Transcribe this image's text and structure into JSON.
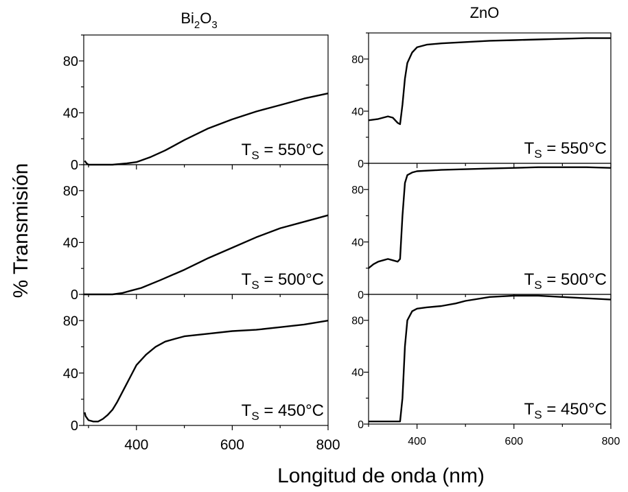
{
  "figure": {
    "ylabel": "% Transmisión",
    "xlabel": "Longitud de onda (nm)"
  },
  "chart_data": [
    {
      "type": "line",
      "column": "Bi₂O₃",
      "title_base": "Bi",
      "title_sub1": "2",
      "title_mid": "O",
      "title_sub2": "3",
      "label_main": "T",
      "label_sub": "S",
      "label_rest": " = 550°C",
      "xlim": [
        290,
        800
      ],
      "ylim": [
        0,
        100
      ],
      "yticks": [
        0,
        40,
        80
      ],
      "xticks": [
        400,
        600,
        800
      ],
      "series": [
        {
          "x": [
            292,
            294,
            296,
            300,
            320,
            350,
            380,
            400,
            430,
            460,
            500,
            550,
            600,
            650,
            700,
            750,
            800
          ],
          "y": [
            3,
            2,
            1,
            0,
            0,
            0,
            1,
            2,
            6,
            11,
            19,
            28,
            35,
            41,
            46,
            51,
            55
          ]
        }
      ]
    },
    {
      "type": "line",
      "column": "Bi₂O₃",
      "label_main": "T",
      "label_sub": "S",
      "label_rest": " = 500°C",
      "xlim": [
        290,
        800
      ],
      "ylim": [
        0,
        100
      ],
      "yticks": [
        0,
        40,
        80
      ],
      "xticks": [
        400,
        600,
        800
      ],
      "series": [
        {
          "x": [
            290,
            320,
            350,
            370,
            390,
            410,
            450,
            500,
            550,
            600,
            650,
            700,
            750,
            800
          ],
          "y": [
            0,
            0,
            0,
            1,
            3,
            5,
            11,
            19,
            28,
            36,
            44,
            51,
            56,
            61
          ]
        }
      ]
    },
    {
      "type": "line",
      "column": "Bi₂O₃",
      "label_main": "T",
      "label_sub": "S",
      "label_rest": " = 450°C",
      "xlim": [
        290,
        800
      ],
      "ylim": [
        0,
        100
      ],
      "yticks": [
        0,
        40,
        80
      ],
      "xticks": [
        400,
        600,
        800
      ],
      "series": [
        {
          "x": [
            292,
            294,
            296,
            300,
            310,
            320,
            330,
            340,
            350,
            360,
            370,
            380,
            390,
            400,
            420,
            440,
            460,
            480,
            500,
            550,
            600,
            650,
            700,
            750,
            800
          ],
          "y": [
            10,
            7,
            6,
            4,
            3,
            3,
            5,
            8,
            12,
            18,
            25,
            32,
            39,
            46,
            54,
            60,
            64,
            66,
            68,
            70,
            72,
            73,
            75,
            77,
            80
          ]
        }
      ]
    },
    {
      "type": "line",
      "column": "ZnO",
      "title": "ZnO",
      "label_main": "T",
      "label_sub": "S",
      "label_rest": " = 550°C",
      "xlim": [
        300,
        800
      ],
      "ylim": [
        0,
        100
      ],
      "yticks": [
        0,
        40,
        80
      ],
      "xticks": [
        400,
        600,
        800
      ],
      "series": [
        {
          "x": [
            300,
            320,
            340,
            350,
            360,
            365,
            370,
            375,
            380,
            390,
            400,
            420,
            450,
            500,
            550,
            600,
            650,
            700,
            750,
            800
          ],
          "y": [
            33,
            34,
            36,
            35,
            31,
            30,
            45,
            65,
            77,
            85,
            89,
            91,
            92,
            93,
            94,
            94.5,
            95,
            95.5,
            96,
            96
          ]
        }
      ]
    },
    {
      "type": "line",
      "column": "ZnO",
      "label_main": "T",
      "label_sub": "S",
      "label_rest": " = 500°C",
      "xlim": [
        300,
        800
      ],
      "ylim": [
        0,
        100
      ],
      "yticks": [
        0,
        40,
        80
      ],
      "xticks": [
        400,
        600,
        800
      ],
      "series": [
        {
          "x": [
            300,
            310,
            320,
            330,
            340,
            350,
            360,
            365,
            370,
            375,
            380,
            390,
            400,
            450,
            500,
            550,
            600,
            650,
            700,
            750,
            800
          ],
          "y": [
            20,
            23,
            25,
            26,
            27,
            26,
            25,
            27,
            60,
            85,
            91,
            93,
            94,
            95,
            95.5,
            96,
            96.5,
            97,
            97,
            97,
            96.5
          ]
        }
      ]
    },
    {
      "type": "line",
      "column": "ZnO",
      "label_main": "T",
      "label_sub": "S",
      "label_rest": " = 450°C",
      "xlim": [
        300,
        800
      ],
      "ylim": [
        0,
        100
      ],
      "yticks": [
        0,
        40,
        80
      ],
      "xticks": [
        400,
        600,
        800
      ],
      "series": [
        {
          "x": [
            300,
            320,
            340,
            360,
            365,
            370,
            375,
            380,
            390,
            400,
            420,
            450,
            480,
            500,
            550,
            600,
            650,
            700,
            750,
            800
          ],
          "y": [
            2,
            2,
            2,
            2,
            2,
            20,
            60,
            80,
            87,
            89,
            90,
            91,
            93,
            95,
            98,
            99,
            99,
            98,
            97,
            96
          ]
        }
      ]
    }
  ]
}
